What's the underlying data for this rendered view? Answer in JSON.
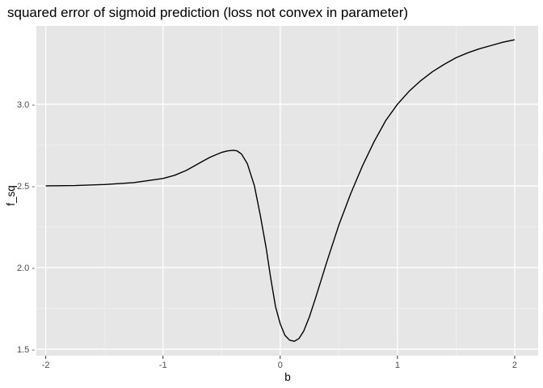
{
  "chart_data": {
    "type": "line",
    "title": "squared error of sigmoid prediction (loss not convex in parameter)",
    "xlabel": "b",
    "ylabel": "f_sq",
    "xlim": [
      -2.08,
      2.2
    ],
    "ylim": [
      1.46,
      3.48
    ],
    "x_ticks": [
      -2,
      -1,
      0,
      1,
      2
    ],
    "x_tick_labels": [
      "-2",
      "-1",
      "0",
      "1",
      "2"
    ],
    "y_ticks": [
      1.5,
      2.0,
      2.5,
      3.0
    ],
    "y_tick_labels": [
      "1.5 -",
      "2.0 -",
      "2.5 -",
      "3.0 -"
    ],
    "grid": true,
    "colors": {
      "panel": "#e6e6e6",
      "grid_major": "#ffffff",
      "line": "#000000"
    },
    "series": [
      {
        "x": [
          -2.0,
          -1.75,
          -1.5,
          -1.25,
          -1.0,
          -0.9,
          -0.8,
          -0.7,
          -0.6,
          -0.5,
          -0.45,
          -0.4,
          -0.37,
          -0.33,
          -0.28,
          -0.22,
          -0.17,
          -0.12,
          -0.08,
          -0.04,
          0.0,
          0.04,
          0.08,
          0.12,
          0.16,
          0.2,
          0.25,
          0.3,
          0.4,
          0.5,
          0.6,
          0.7,
          0.8,
          0.9,
          1.0,
          1.1,
          1.2,
          1.3,
          1.4,
          1.5,
          1.6,
          1.7,
          1.8,
          1.9,
          2.0
        ],
        "y": [
          2.5,
          2.502,
          2.508,
          2.52,
          2.545,
          2.565,
          2.595,
          2.635,
          2.675,
          2.705,
          2.714,
          2.718,
          2.715,
          2.695,
          2.635,
          2.5,
          2.32,
          2.12,
          1.93,
          1.76,
          1.655,
          1.585,
          1.555,
          1.548,
          1.565,
          1.61,
          1.7,
          1.81,
          2.04,
          2.26,
          2.45,
          2.62,
          2.77,
          2.9,
          3.0,
          3.08,
          3.145,
          3.2,
          3.245,
          3.285,
          3.315,
          3.34,
          3.36,
          3.38,
          3.395
        ]
      }
    ]
  }
}
